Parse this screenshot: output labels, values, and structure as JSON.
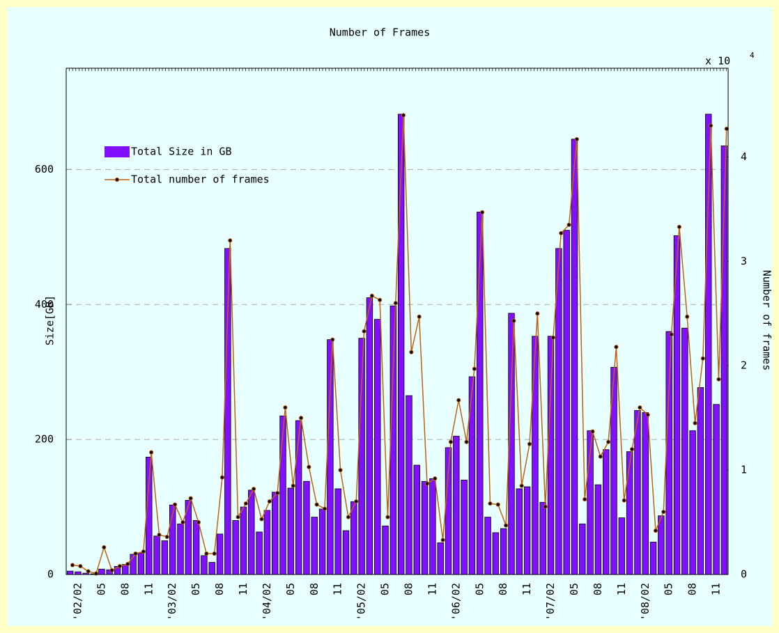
{
  "chart_data": {
    "type": "bar_line",
    "title": "Number of Frames",
    "ylabel": "Size[GB]",
    "y2label": "Number of frames",
    "y2_scale_label": "x 10",
    "y2_scale_exponent": "4",
    "categories": [
      null,
      "'02/02",
      null,
      null,
      "05",
      null,
      null,
      "08",
      null,
      null,
      "11",
      null,
      null,
      "'03/02",
      null,
      null,
      "05",
      null,
      null,
      "08",
      null,
      null,
      "11",
      null,
      null,
      "'04/02",
      null,
      null,
      "05",
      null,
      null,
      "08",
      null,
      null,
      "11",
      null,
      null,
      "'05/02",
      null,
      null,
      "05",
      null,
      null,
      "08",
      null,
      null,
      "11",
      null,
      null,
      "'06/02",
      null,
      null,
      "05",
      null,
      null,
      "08",
      null,
      null,
      "11",
      null,
      null,
      "'07/02",
      null,
      null,
      "05",
      null,
      null,
      "08",
      null,
      null,
      "11",
      null,
      null,
      "'08/02",
      null,
      null,
      "05",
      null,
      null,
      "08",
      null,
      null,
      "11",
      null
    ],
    "series": [
      {
        "name": "Total Size in GB",
        "kind": "bar",
        "color": "#8010ff",
        "values": [
          5,
          4,
          2,
          1,
          8,
          7,
          12,
          15,
          30,
          32,
          174,
          57,
          50,
          103,
          75,
          110,
          80,
          28,
          18,
          60,
          483,
          80,
          100,
          125,
          63,
          95,
          122,
          235,
          128,
          228,
          138,
          85,
          97,
          348,
          127,
          65,
          108,
          350,
          410,
          378,
          72,
          398,
          682,
          265,
          162,
          138,
          142,
          47,
          188,
          205,
          140,
          293,
          537,
          85,
          62,
          68,
          387,
          127,
          130,
          353,
          107,
          353,
          483,
          510,
          645,
          75,
          213,
          133,
          185,
          307,
          84,
          182,
          243,
          240,
          48,
          87,
          360,
          502,
          365,
          213,
          277,
          682,
          252,
          635
        ]
      },
      {
        "name": "Total number of frames",
        "kind": "line",
        "axis": "y2",
        "color": "#c06010",
        "values": [
          0.09,
          0.08,
          0.03,
          0.01,
          0.26,
          0.04,
          0.08,
          0.1,
          0.2,
          0.22,
          1.17,
          0.38,
          0.36,
          0.67,
          0.5,
          0.73,
          0.5,
          0.2,
          0.2,
          0.93,
          3.2,
          0.55,
          0.68,
          0.82,
          0.53,
          0.7,
          0.78,
          1.6,
          0.85,
          1.5,
          1.03,
          0.67,
          0.63,
          2.25,
          1.0,
          0.55,
          0.7,
          2.33,
          2.67,
          2.63,
          0.55,
          2.6,
          4.4,
          2.13,
          2.47,
          0.87,
          0.92,
          0.33,
          1.27,
          1.67,
          1.27,
          1.97,
          3.47,
          0.68,
          0.67,
          0.47,
          2.43,
          0.85,
          1.25,
          2.5,
          0.65,
          2.27,
          3.27,
          3.35,
          4.17,
          0.72,
          1.37,
          1.13,
          1.27,
          2.18,
          0.71,
          1.2,
          1.6,
          1.53,
          0.42,
          0.6,
          2.3,
          3.33,
          2.47,
          1.45,
          2.07,
          4.3,
          1.87,
          4.27
        ]
      }
    ],
    "ylim": [
      0,
      750
    ],
    "yticks": [
      0,
      200,
      400,
      600
    ],
    "y2lim": [
      0,
      4.85
    ],
    "y2ticks": [
      0,
      1,
      2,
      3,
      4
    ],
    "grid": true,
    "legend": "upper left"
  }
}
